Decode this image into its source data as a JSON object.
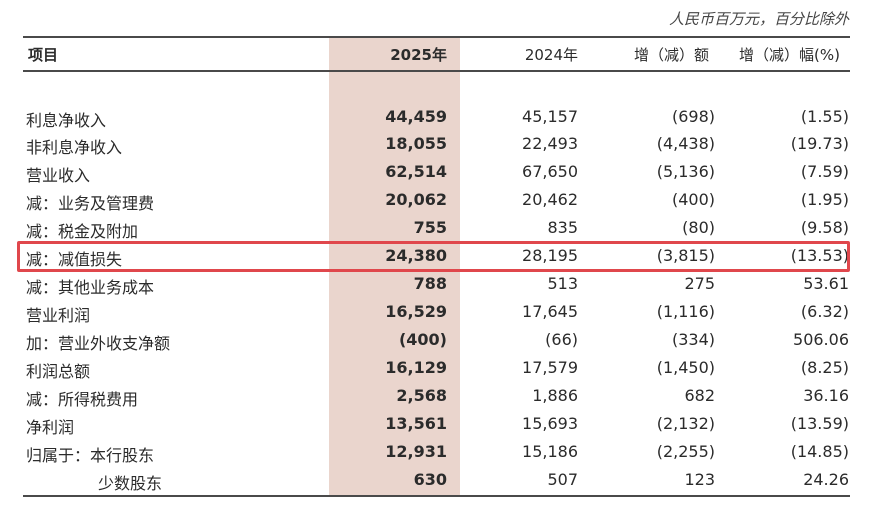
{
  "unit_note": "人民币百万元，百分比除外",
  "header": {
    "item": "项目",
    "y2025": "2025年",
    "y2024": "2024年",
    "change": "增（减）额",
    "change_pct": "增（减）幅(%)"
  },
  "rows": [
    {
      "label": "利息净收入",
      "y2025": "44,459",
      "y2024": "45,157",
      "change": "(698)",
      "change_pct": "(1.55)"
    },
    {
      "label": "非利息净收入",
      "y2025": "18,055",
      "y2024": "22,493",
      "change": "(4,438)",
      "change_pct": "(19.73)"
    },
    {
      "label": "营业收入",
      "y2025": "62,514",
      "y2024": "67,650",
      "change": "(5,136)",
      "change_pct": "(7.59)"
    },
    {
      "label": "减：业务及管理费",
      "y2025": "20,062",
      "y2024": "20,462",
      "change": "(400)",
      "change_pct": "(1.95)"
    },
    {
      "label": "减：税金及附加",
      "y2025": "755",
      "y2024": "835",
      "change": "(80)",
      "change_pct": "(9.58)"
    },
    {
      "label": "减：减值损失",
      "y2025": "24,380",
      "y2024": "28,195",
      "change": "(3,815)",
      "change_pct": "(13.53)"
    },
    {
      "label": "减：其他业务成本",
      "y2025": "788",
      "y2024": "513",
      "change": "275",
      "change_pct": "53.61"
    },
    {
      "label": "营业利润",
      "y2025": "16,529",
      "y2024": "17,645",
      "change": "(1,116)",
      "change_pct": "(6.32)"
    },
    {
      "label": "加：营业外收支净额",
      "y2025": "(400)",
      "y2024": "(66)",
      "change": "(334)",
      "change_pct": "506.06"
    },
    {
      "label": "利润总额",
      "y2025": "16,129",
      "y2024": "17,579",
      "change": "(1,450)",
      "change_pct": "(8.25)"
    },
    {
      "label": "减：所得税费用",
      "y2025": "2,568",
      "y2024": "1,886",
      "change": "682",
      "change_pct": "36.16"
    },
    {
      "label": "净利润",
      "y2025": "13,561",
      "y2024": "15,693",
      "change": "(2,132)",
      "change_pct": "(13.59)"
    },
    {
      "label": "归属于：本行股东",
      "y2025": "12,931",
      "y2024": "15,186",
      "change": "(2,255)",
      "change_pct": "(14.85)"
    },
    {
      "label": "少数股东",
      "y2025": "630",
      "y2024": "507",
      "change": "123",
      "change_pct": "24.26"
    }
  ],
  "highlight_color": "#e0474c",
  "column_highlight_color": "#ead5cd"
}
